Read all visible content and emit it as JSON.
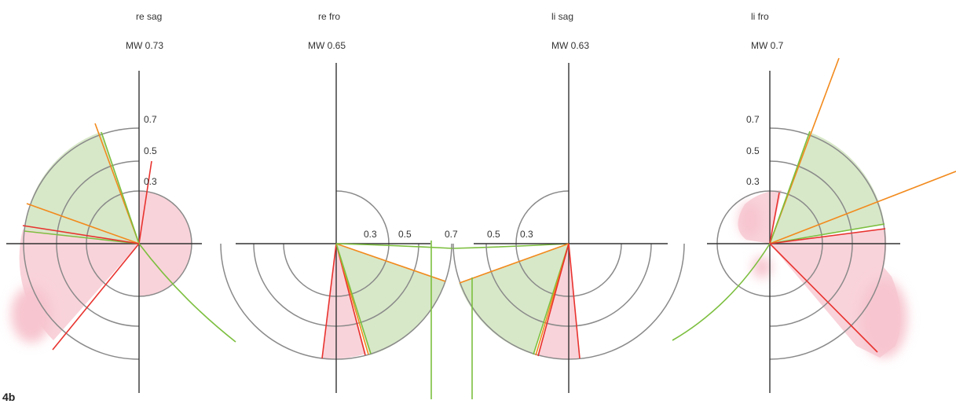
{
  "figure_label": "4b",
  "panels": [
    {
      "title": "re sag",
      "mean": "MW 0.73",
      "ticks": [
        "0.7",
        "0.5",
        "0.3"
      ]
    },
    {
      "title": "re fro",
      "mean": "MW 0.65",
      "ticks": [
        "0.3",
        "0.5",
        "0.7"
      ]
    },
    {
      "title": "li sag",
      "mean": "MW 0.63",
      "ticks": [
        "0.5",
        "0.3"
      ]
    },
    {
      "title": "li fro",
      "mean": "MW 0.7",
      "ticks": [
        "0.7",
        "0.5",
        "0.3"
      ]
    }
  ],
  "colors": {
    "green_fill": "#d7e8c8",
    "green_line": "#7cbf3f",
    "pink_fill": "#f9d3da",
    "red_line": "#e8332f",
    "orange_line": "#f28a1d",
    "ring": "#8a8a8a",
    "axis": "#333333"
  }
}
